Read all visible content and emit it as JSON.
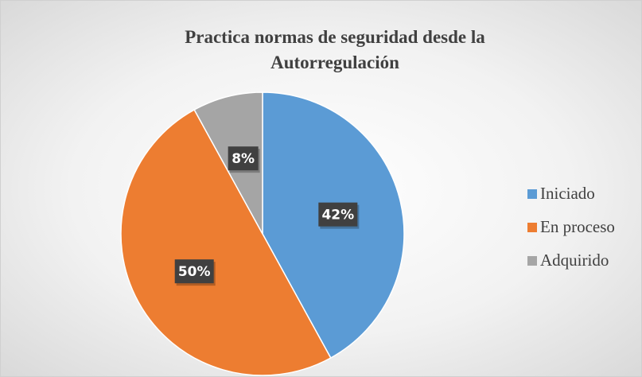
{
  "chart_data": {
    "type": "pie",
    "title": "Practica normas de seguridad desde la Autorregulación",
    "categories": [
      "Iniciado",
      "En proceso",
      "Adquirido"
    ],
    "values": [
      42,
      50,
      8
    ],
    "value_labels": [
      "42%",
      "50%",
      "8%"
    ],
    "colors": [
      "#5b9bd5",
      "#ed7d31",
      "#a5a5a5"
    ],
    "legend": "right"
  }
}
